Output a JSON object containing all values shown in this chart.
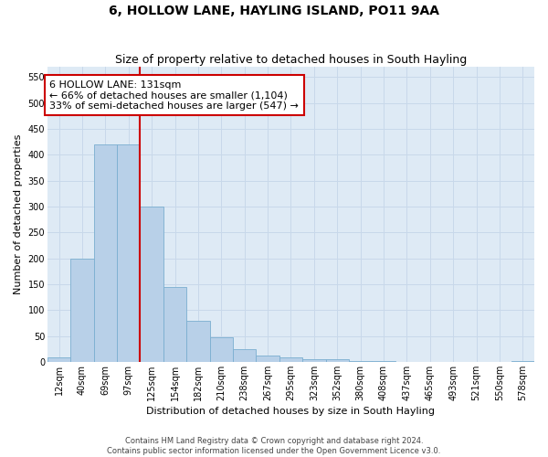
{
  "title": "6, HOLLOW LANE, HAYLING ISLAND, PO11 9AA",
  "subtitle": "Size of property relative to detached houses in South Hayling",
  "xlabel": "Distribution of detached houses by size in South Hayling",
  "ylabel": "Number of detached properties",
  "footer_line1": "Contains HM Land Registry data © Crown copyright and database right 2024.",
  "footer_line2": "Contains public sector information licensed under the Open Government Licence v3.0.",
  "bin_labels": [
    "12sqm",
    "40sqm",
    "69sqm",
    "97sqm",
    "125sqm",
    "154sqm",
    "182sqm",
    "210sqm",
    "238sqm",
    "267sqm",
    "295sqm",
    "323sqm",
    "352sqm",
    "380sqm",
    "408sqm",
    "437sqm",
    "465sqm",
    "493sqm",
    "521sqm",
    "550sqm",
    "578sqm"
  ],
  "bar_values": [
    8,
    200,
    420,
    420,
    300,
    145,
    80,
    48,
    25,
    12,
    8,
    5,
    5,
    2,
    1,
    0,
    0,
    0,
    0,
    0,
    2
  ],
  "bar_color": "#b8d0e8",
  "bar_edge_color": "#7aaed0",
  "annotation_text": "6 HOLLOW LANE: 131sqm\n← 66% of detached houses are smaller (1,104)\n33% of semi-detached houses are larger (547) →",
  "annotation_box_color": "#ffffff",
  "annotation_box_edgecolor": "#cc0000",
  "vline_color": "#cc0000",
  "vline_bin_index": 4,
  "ylim": [
    0,
    570
  ],
  "yticks": [
    0,
    50,
    100,
    150,
    200,
    250,
    300,
    350,
    400,
    450,
    500,
    550
  ],
  "grid_color": "#c8d8ea",
  "background_color": "#deeaf5",
  "title_fontsize": 10,
  "subtitle_fontsize": 9,
  "axis_label_fontsize": 8,
  "tick_fontsize": 7,
  "annotation_fontsize": 8,
  "footer_fontsize": 6
}
